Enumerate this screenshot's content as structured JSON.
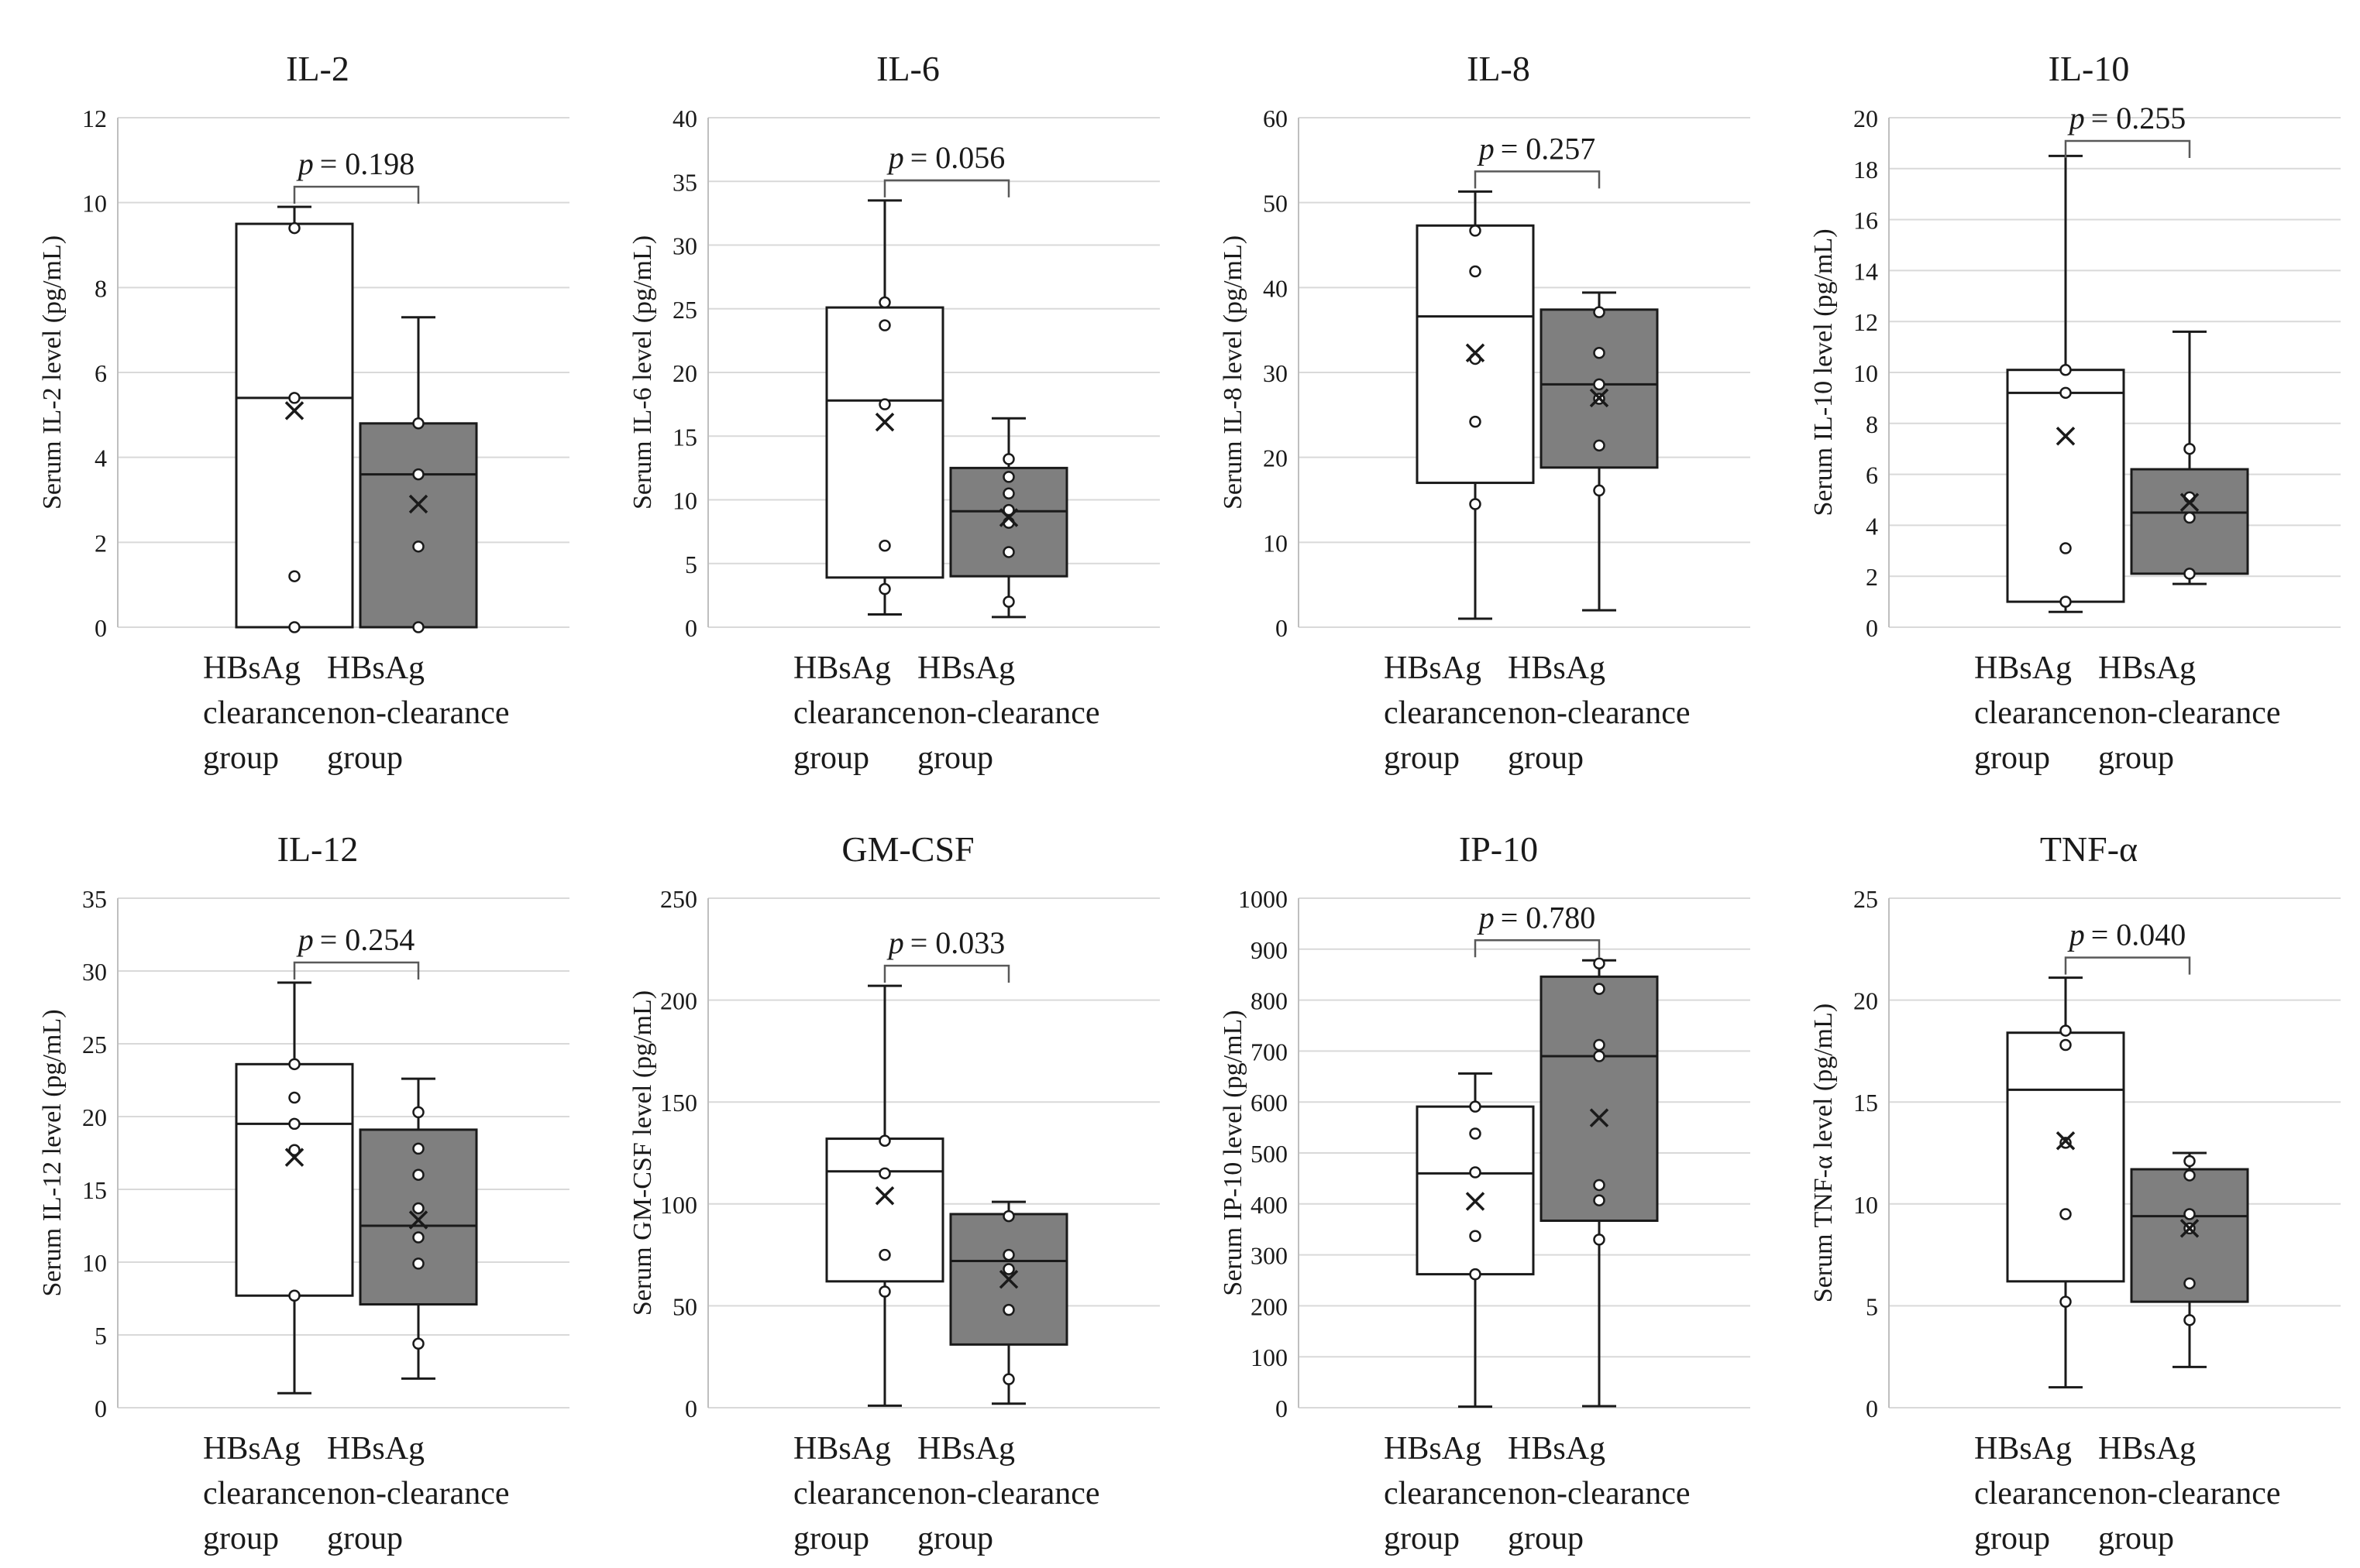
{
  "colors": {
    "clearance_fill": "#ffffff",
    "nonclearance_fill": "#7f7f7f",
    "outline": "#1a1a1a",
    "grid": "#d9d9d9",
    "text": "#1a1a1a"
  },
  "groups": [
    "HBsAg clearance group",
    "HBsAg non-clearance group"
  ],
  "group_label_lines": [
    [
      "HBsAg",
      "clearance",
      "group"
    ],
    [
      "HBsAg",
      "non-clearance",
      "group"
    ]
  ],
  "chart_data": [
    {
      "type": "box",
      "title": "IL-2",
      "ylabel": "Serum IL-2 level (pg/mL)",
      "ylim": [
        0,
        12
      ],
      "yticks": [
        0,
        2,
        4,
        6,
        8,
        10,
        12
      ],
      "p_label": "p",
      "p_value": "= 0.198",
      "boxes": [
        {
          "group": "HBsAg clearance group",
          "min": 0,
          "q1": 0,
          "median": 5.4,
          "q3": 9.5,
          "max": 9.9,
          "mean": 5.1,
          "points": [
            0,
            1.2,
            5.4,
            9.4
          ]
        },
        {
          "group": "HBsAg non-clearance group",
          "min": 0,
          "q1": 0,
          "median": 3.6,
          "q3": 4.8,
          "max": 7.3,
          "mean": 2.9,
          "points": [
            0,
            1.9,
            3.6,
            4.8
          ]
        }
      ]
    },
    {
      "type": "box",
      "title": "IL-6",
      "ylabel": "Serum IL-6 level (pg/mL)",
      "ylim": [
        0,
        40
      ],
      "yticks": [
        0,
        5,
        10,
        15,
        20,
        25,
        30,
        35,
        40
      ],
      "p_label": "p",
      "p_value": "= 0.056",
      "boxes": [
        {
          "group": "HBsAg clearance group",
          "min": 1,
          "q1": 3.9,
          "median": 17.8,
          "q3": 25.1,
          "max": 33.5,
          "mean": 16.1,
          "points": [
            3,
            6.4,
            17.5,
            23.7,
            25.5
          ]
        },
        {
          "group": "HBsAg non-clearance group",
          "min": 0.8,
          "q1": 4,
          "median": 9.1,
          "q3": 12.5,
          "max": 16.4,
          "mean": 8.6,
          "points": [
            2,
            5.9,
            8.2,
            9.2,
            10.5,
            11.8,
            13.2
          ]
        }
      ]
    },
    {
      "type": "box",
      "title": "IL-8",
      "ylabel": "Serum IL-8 level (pg/mL)",
      "ylim": [
        0,
        60
      ],
      "yticks": [
        0,
        10,
        20,
        30,
        40,
        50,
        60
      ],
      "p_label": "p",
      "p_value": "= 0.257",
      "boxes": [
        {
          "group": "HBsAg clearance group",
          "min": 1,
          "q1": 17,
          "median": 36.6,
          "q3": 47.3,
          "max": 51.3,
          "mean": 32.3,
          "points": [
            14.5,
            24.2,
            31.6,
            41.9,
            46.7
          ]
        },
        {
          "group": "HBsAg non-clearance group",
          "min": 2,
          "q1": 18.8,
          "median": 28.6,
          "q3": 37.4,
          "max": 39.4,
          "mean": 27,
          "points": [
            16.1,
            21.4,
            26.9,
            28.6,
            32.3,
            37.1
          ]
        }
      ]
    },
    {
      "type": "box",
      "title": "IL-10",
      "ylabel": "Serum IL-10 level (pg/mL)",
      "ylim": [
        0,
        20
      ],
      "yticks": [
        0,
        2,
        4,
        6,
        8,
        10,
        12,
        14,
        16,
        18,
        20
      ],
      "p_label": "p",
      "p_value": "= 0.255",
      "boxes": [
        {
          "group": "HBsAg clearance group",
          "min": 0.6,
          "q1": 1,
          "median": 9.2,
          "q3": 10.1,
          "max": 18.5,
          "mean": 7.5,
          "points": [
            1,
            3.1,
            9.2,
            10.1
          ]
        },
        {
          "group": "HBsAg non-clearance group",
          "min": 1.7,
          "q1": 2.1,
          "median": 4.5,
          "q3": 6.2,
          "max": 11.6,
          "mean": 4.9,
          "points": [
            2.1,
            4.3,
            5.1,
            7
          ]
        }
      ]
    },
    {
      "type": "box",
      "title": "IL-12",
      "ylabel": "Serum IL-12 level (pg/mL)",
      "ylim": [
        0,
        35
      ],
      "yticks": [
        0,
        5,
        10,
        15,
        20,
        25,
        30,
        35
      ],
      "p_label": "p",
      "p_value": "= 0.254",
      "boxes": [
        {
          "group": "HBsAg clearance group",
          "min": 1,
          "q1": 7.7,
          "median": 19.5,
          "q3": 23.6,
          "max": 29.2,
          "mean": 17.2,
          "points": [
            7.7,
            17.7,
            19.5,
            21.3,
            23.6
          ]
        },
        {
          "group": "HBsAg non-clearance group",
          "min": 2,
          "q1": 7.1,
          "median": 12.5,
          "q3": 19.1,
          "max": 22.6,
          "mean": 12.9,
          "points": [
            4.4,
            9.9,
            11.7,
            13.7,
            16,
            17.8,
            20.3
          ]
        }
      ]
    },
    {
      "type": "box",
      "title": "GM-CSF",
      "ylabel": "Serum GM-CSF level (pg/mL)",
      "ylim": [
        0,
        250
      ],
      "yticks": [
        0,
        50,
        100,
        150,
        200,
        250
      ],
      "p_label": "p",
      "p_value": "= 0.033",
      "boxes": [
        {
          "group": "HBsAg clearance group",
          "min": 1,
          "q1": 62,
          "median": 116,
          "q3": 132,
          "max": 207,
          "mean": 104,
          "points": [
            57,
            75,
            115,
            131
          ]
        },
        {
          "group": "HBsAg non-clearance group",
          "min": 2,
          "q1": 31,
          "median": 72,
          "q3": 95,
          "max": 101,
          "mean": 63,
          "points": [
            14,
            48,
            68,
            75,
            94
          ]
        }
      ]
    },
    {
      "type": "box",
      "title": "IP-10",
      "ylabel": "Serum IP-10 level (pg/mL)",
      "ylim": [
        0,
        1000
      ],
      "yticks": [
        0,
        100,
        200,
        300,
        400,
        500,
        600,
        700,
        800,
        900,
        1000
      ],
      "p_label": "p",
      "p_value": "= 0.780",
      "boxes": [
        {
          "group": "HBsAg clearance group",
          "min": 2,
          "q1": 262,
          "median": 460,
          "q3": 591,
          "max": 656,
          "mean": 405,
          "points": [
            262,
            337,
            462,
            538,
            591
          ]
        },
        {
          "group": "HBsAg non-clearance group",
          "min": 3,
          "q1": 367,
          "median": 690,
          "q3": 846,
          "max": 878,
          "mean": 569,
          "points": [
            330,
            407,
            437,
            690,
            712,
            822,
            872
          ]
        }
      ]
    },
    {
      "type": "box",
      "title": "TNF-α",
      "ylabel": "Serum TNF-α level (pg/mL)",
      "ylim": [
        0,
        25
      ],
      "yticks": [
        0,
        5,
        10,
        15,
        20,
        25
      ],
      "p_label": "p",
      "p_value": "= 0.040",
      "boxes": [
        {
          "group": "HBsAg clearance group",
          "min": 1,
          "q1": 6.2,
          "median": 15.6,
          "q3": 18.4,
          "max": 21.1,
          "mean": 13.1,
          "points": [
            5.2,
            9.5,
            13,
            17.8,
            18.5
          ]
        },
        {
          "group": "HBsAg non-clearance group",
          "min": 2,
          "q1": 5.2,
          "median": 9.4,
          "q3": 11.7,
          "max": 12.5,
          "mean": 8.8,
          "points": [
            4.3,
            6.1,
            8.8,
            9.5,
            11.4,
            12.1
          ]
        }
      ]
    }
  ]
}
